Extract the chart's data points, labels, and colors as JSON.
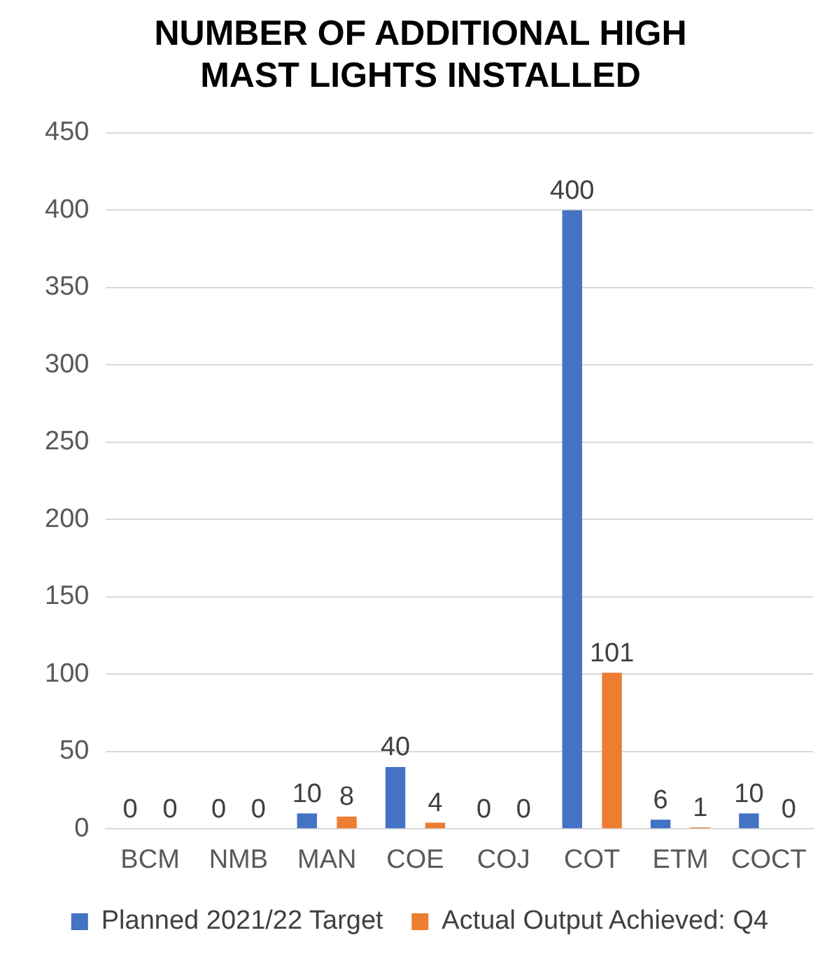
{
  "chart_data": {
    "type": "bar",
    "title": "NUMBER OF ADDITIONAL HIGH MAST LIGHTS INSTALLED",
    "categories": [
      "BCM",
      "NMB",
      "MAN",
      "COE",
      "COJ",
      "COT",
      "ETM",
      "COCT"
    ],
    "series": [
      {
        "name": "Planned 2021/22 Target",
        "color": "#4472c4",
        "values": [
          0,
          0,
          10,
          40,
          0,
          400,
          6,
          10
        ]
      },
      {
        "name": "Actual Output Achieved: Q4",
        "color": "#ed7d31",
        "values": [
          0,
          0,
          8,
          4,
          0,
          101,
          1,
          0
        ]
      }
    ],
    "ylim": [
      0,
      450
    ],
    "yticks": [
      0,
      50,
      100,
      150,
      200,
      250,
      300,
      350,
      400,
      450
    ],
    "grid": "y",
    "legend": "bottom",
    "data_labels": true
  }
}
